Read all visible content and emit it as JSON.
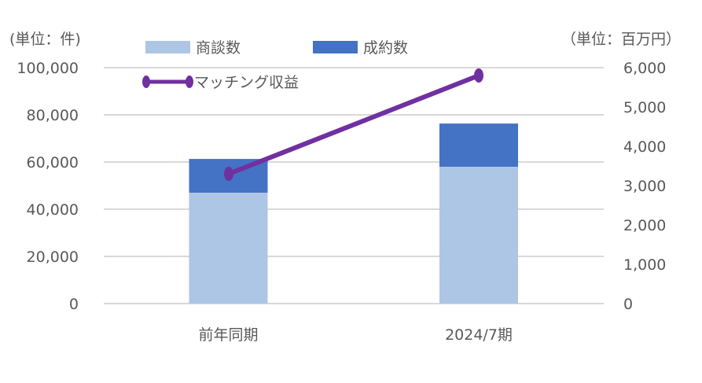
{
  "chart_data": {
    "type": "bar",
    "stacked": true,
    "categories": [
      "前年同期",
      "2024/7期"
    ],
    "series": [
      {
        "name": "商談数",
        "type": "bar",
        "axis": "left",
        "color": "#AEC6E5",
        "values": [
          47000,
          58000
        ]
      },
      {
        "name": "成約数",
        "type": "bar",
        "axis": "left",
        "color": "#4472C4",
        "values": [
          14300,
          18300
        ]
      },
      {
        "name": "マッチング収益",
        "type": "line",
        "axis": "right",
        "color": "#7030A0",
        "values": [
          3300,
          5800
        ]
      }
    ],
    "left_axis": {
      "unit_label": "(単位：件)",
      "ylim": [
        0,
        100000
      ],
      "ticks": [
        "0",
        "20,000",
        "40,000",
        "60,000",
        "80,000",
        "100,000"
      ]
    },
    "right_axis": {
      "unit_label": "（単位：百万円）",
      "ylim": [
        0,
        6000
      ],
      "ticks": [
        "0",
        "1,000",
        "2,000",
        "3,000",
        "4,000",
        "5,000",
        "6,000"
      ]
    },
    "title": "",
    "xlabel": "",
    "ylabel": "",
    "grid": true,
    "legend_position": "top"
  },
  "legend": {
    "items": [
      {
        "label": "商談数",
        "color": "#AEC6E5"
      },
      {
        "label": "成約数",
        "color": "#4472C4"
      },
      {
        "label": "マッチング収益",
        "color": "#7030A0"
      }
    ]
  }
}
